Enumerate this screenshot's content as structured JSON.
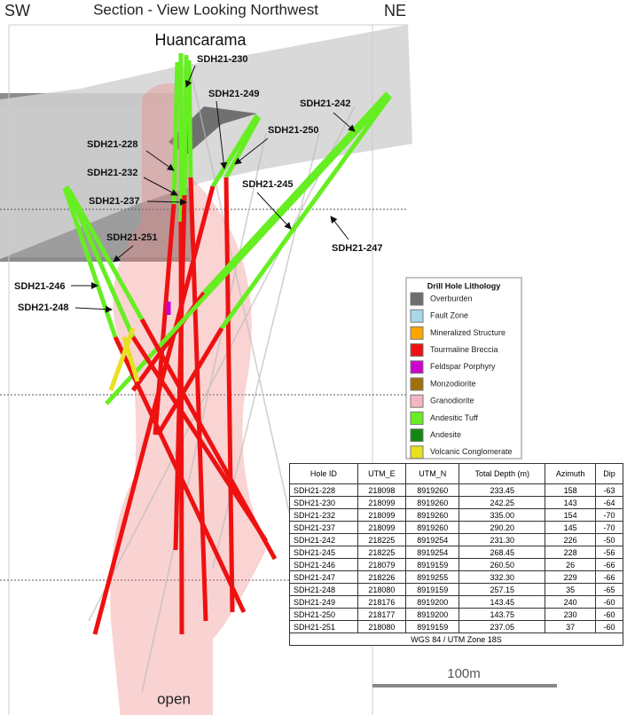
{
  "header": {
    "left": "SW",
    "title": "Section - View Looking Northwest",
    "right": "NE"
  },
  "labels": {
    "peak": "Huancarama",
    "bottom": "open"
  },
  "hole_labels": [
    "SDH21-230",
    "SDH21-249",
    "SDH21-242",
    "SDH21-228",
    "SDH21-250",
    "SDH21-232",
    "SDH21-237",
    "SDH21-245",
    "SDH21-247",
    "SDH21-251",
    "SDH21-246",
    "SDH21-248"
  ],
  "legend": {
    "title": "Drill Hole Lithology",
    "items": [
      {
        "label": "Overburden",
        "color": "#6e6e6e"
      },
      {
        "label": "Fault Zone",
        "color": "#a9d8e8"
      },
      {
        "label": "Mineralized Structure",
        "color": "#ffa500"
      },
      {
        "label": "Tourmaline Breccia",
        "color": "#ee1111"
      },
      {
        "label": "Feldspar Porphyry",
        "color": "#cc00cc"
      },
      {
        "label": "Monzodiorite",
        "color": "#a0700a"
      },
      {
        "label": "Granodiorite",
        "color": "#f4b6c2"
      },
      {
        "label": "Andesitic Tuff",
        "color": "#66ee22"
      },
      {
        "label": "Andesite",
        "color": "#118811"
      },
      {
        "label": "Volcanic Conglomerate",
        "color": "#e8e020"
      }
    ]
  },
  "table": {
    "columns": [
      "Hole ID",
      "UTM_E",
      "UTM_N",
      "Total Depth (m)",
      "Azimuth",
      "Dip"
    ],
    "rows": [
      [
        "SDH21-228",
        "218098",
        "8919260",
        "233.45",
        "158",
        "-63"
      ],
      [
        "SDH21-230",
        "218099",
        "8919260",
        "242.25",
        "143",
        "-64"
      ],
      [
        "SDH21-232",
        "218099",
        "8919260",
        "335.00",
        "154",
        "-70"
      ],
      [
        "SDH21-237",
        "218099",
        "8919260",
        "290.20",
        "145",
        "-70"
      ],
      [
        "SDH21-242",
        "218225",
        "8919254",
        "231.30",
        "226",
        "-50"
      ],
      [
        "SDH21-245",
        "218225",
        "8919254",
        "268.45",
        "228",
        "-56"
      ],
      [
        "SDH21-246",
        "218079",
        "8919159",
        "260.50",
        "26",
        "-66"
      ],
      [
        "SDH21-247",
        "218226",
        "8919255",
        "332.30",
        "229",
        "-66"
      ],
      [
        "SDH21-248",
        "218080",
        "8919159",
        "257.15",
        "35",
        "-65"
      ],
      [
        "SDH21-249",
        "218176",
        "8919200",
        "143.45",
        "240",
        "-60"
      ],
      [
        "SDH21-250",
        "218177",
        "8919200",
        "143.75",
        "230",
        "-60"
      ],
      [
        "SDH21-251",
        "218080",
        "8919159",
        "237.05",
        "37",
        "-60"
      ]
    ],
    "footer": "WGS 84 / UTM Zone 18S"
  },
  "scale_bar": {
    "label": "100m"
  }
}
